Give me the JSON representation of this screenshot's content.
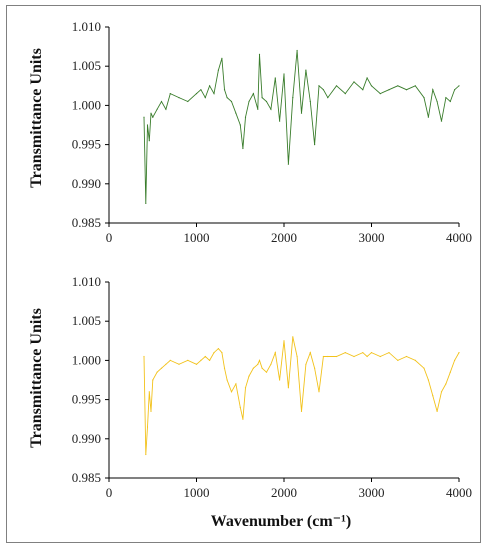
{
  "chart_data": [
    {
      "type": "line",
      "title": "",
      "xlabel": "",
      "ylabel": "Transmittance Units",
      "xlim": [
        0,
        4000
      ],
      "ylim": [
        0.985,
        1.01
      ],
      "xticks": [
        "0",
        "1000",
        "2000",
        "3000",
        "4000"
      ],
      "yticks": [
        "0.985",
        "0.990",
        "0.995",
        "1.000",
        "1.005",
        "1.010"
      ],
      "grid": false,
      "color": "#3a7d2c",
      "series": [
        {
          "x": [
            400,
            420,
            440,
            460,
            480,
            500,
            550,
            600,
            650,
            700,
            800,
            900,
            1000,
            1050,
            1100,
            1150,
            1200,
            1250,
            1290,
            1320,
            1350,
            1400,
            1450,
            1500,
            1530,
            1560,
            1600,
            1650,
            1700,
            1720,
            1750,
            1800,
            1850,
            1900,
            1950,
            2000,
            2050,
            2100,
            2150,
            2200,
            2250,
            2300,
            2350,
            2400,
            2450,
            2500,
            2600,
            2700,
            2800,
            2900,
            2950,
            3000,
            3100,
            3200,
            3300,
            3400,
            3500,
            3600,
            3650,
            3700,
            3750,
            3800,
            3850,
            3900,
            3950,
            4000
          ],
          "y": [
            0.9985,
            0.9875,
            0.9975,
            0.9955,
            0.999,
            0.9985,
            0.9995,
            1.0005,
            0.9995,
            1.0015,
            1.001,
            1.0005,
            1.0015,
            1.002,
            1.001,
            1.0025,
            1.0015,
            1.0045,
            1.006,
            1.002,
            1.001,
            1.0005,
            0.999,
            0.9975,
            0.9945,
            0.9985,
            1.0005,
            1.0015,
            0.9995,
            1.0065,
            1.001,
            1.0005,
            0.9995,
            1.0035,
            0.998,
            1.004,
            0.9925,
            1.001,
            1.007,
            0.999,
            1.0045,
            1.0005,
            0.995,
            1.0025,
            1.002,
            1.001,
            1.0025,
            1.0015,
            1.003,
            1.002,
            1.0035,
            1.0025,
            1.0015,
            1.002,
            1.0025,
            1.002,
            1.0025,
            1.001,
            0.9985,
            1.002,
            1.0005,
            0.998,
            1.001,
            1.0005,
            1.002,
            1.0025
          ]
        }
      ]
    },
    {
      "type": "line",
      "title": "",
      "xlabel": "Wavenumber (cm⁻¹)",
      "ylabel": "Transmittance Units",
      "xlim": [
        0,
        4000
      ],
      "ylim": [
        0.985,
        1.01
      ],
      "xticks": [
        "0",
        "1000",
        "2000",
        "3000",
        "4000"
      ],
      "yticks": [
        "0.985",
        "0.990",
        "0.995",
        "1.000",
        "1.005",
        "1.010"
      ],
      "grid": false,
      "color": "#f2c21b",
      "series": [
        {
          "x": [
            400,
            420,
            440,
            460,
            480,
            500,
            550,
            600,
            650,
            700,
            800,
            900,
            1000,
            1050,
            1100,
            1150,
            1200,
            1250,
            1290,
            1320,
            1350,
            1400,
            1450,
            1500,
            1530,
            1560,
            1600,
            1650,
            1700,
            1720,
            1750,
            1800,
            1850,
            1900,
            1950,
            2000,
            2050,
            2100,
            2150,
            2200,
            2250,
            2300,
            2350,
            2400,
            2450,
            2500,
            2600,
            2700,
            2800,
            2900,
            2950,
            3000,
            3100,
            3200,
            3300,
            3400,
            3500,
            3600,
            3650,
            3700,
            3750,
            3800,
            3850,
            3900,
            3950,
            4000
          ],
          "y": [
            1.0005,
            0.988,
            0.9915,
            0.996,
            0.9935,
            0.9975,
            0.9985,
            0.999,
            0.9995,
            1.0,
            0.9995,
            1.0,
            0.9995,
            1.0,
            1.0005,
            1.0,
            1.001,
            1.0015,
            1.001,
            0.999,
            0.9975,
            0.996,
            0.997,
            0.994,
            0.9925,
            0.9965,
            0.998,
            0.999,
            0.9995,
            1.0,
            0.999,
            0.9985,
            0.9995,
            1.001,
            0.9975,
            1.0025,
            0.9965,
            1.003,
            1.0005,
            0.9935,
            0.9995,
            1.001,
            0.999,
            0.996,
            1.0005,
            1.0005,
            1.0005,
            1.001,
            1.0005,
            1.001,
            1.0005,
            1.001,
            1.0005,
            1.001,
            1.0,
            1.0005,
            1.0,
            0.999,
            0.9975,
            0.9955,
            0.9935,
            0.996,
            0.997,
            0.9985,
            1.0,
            1.001
          ]
        }
      ]
    }
  ]
}
